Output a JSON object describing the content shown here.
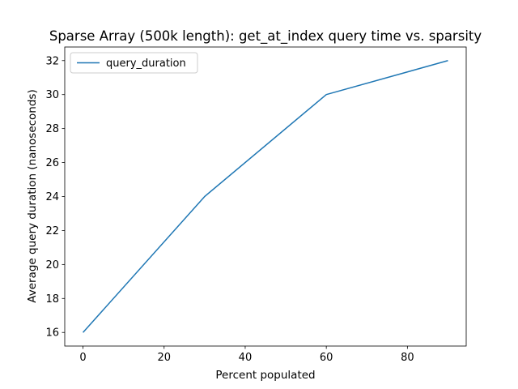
{
  "chart_data": {
    "type": "line",
    "title": "Sparse Array (500k length): get_at_index query time vs. sparsity",
    "xlabel": "Percent populated",
    "ylabel": "Average query duration (nanoseconds)",
    "xlim": [
      -4.5,
      94.5
    ],
    "ylim": [
      15.2,
      32.8
    ],
    "xticks": [
      0,
      20,
      40,
      60,
      80
    ],
    "yticks": [
      16,
      18,
      20,
      22,
      24,
      26,
      28,
      30,
      32
    ],
    "grid": false,
    "legend_position": "upper left",
    "series": [
      {
        "name": "query_duration",
        "color": "#1f77b4",
        "x": [
          0,
          30,
          60,
          90
        ],
        "y": [
          16,
          24,
          30,
          32
        ]
      }
    ]
  }
}
